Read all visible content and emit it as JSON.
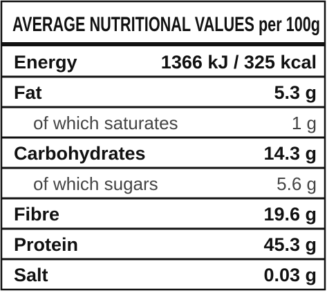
{
  "header": {
    "title": "AVERAGE NUTRITIONAL VALUES per 100g"
  },
  "table": {
    "rows": [
      {
        "label": "Energy",
        "value": "1366 kJ / 325 kcal"
      },
      {
        "label": "Fat",
        "value": "5.3 g",
        "sub_rows": [
          {
            "label": "of which saturates",
            "value": "1 g"
          }
        ]
      },
      {
        "label": "Carbohydrates",
        "value": "14.3 g",
        "sub_rows": [
          {
            "label": "of which sugars",
            "value": "5.6 g"
          }
        ]
      },
      {
        "label": "Fibre",
        "value": "19.6 g"
      },
      {
        "label": "Protein",
        "value": "45.3 g"
      },
      {
        "label": "Salt",
        "value": "0.03 g"
      }
    ]
  }
}
